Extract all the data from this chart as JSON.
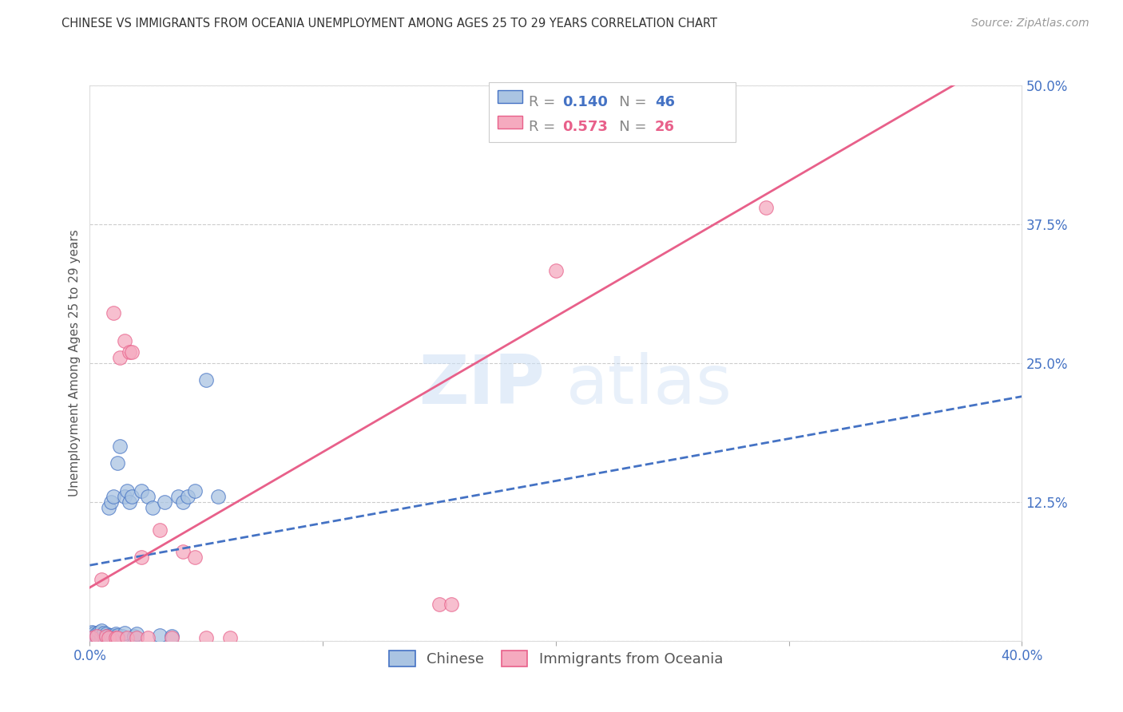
{
  "title": "CHINESE VS IMMIGRANTS FROM OCEANIA UNEMPLOYMENT AMONG AGES 25 TO 29 YEARS CORRELATION CHART",
  "source": "Source: ZipAtlas.com",
  "ylabel": "Unemployment Among Ages 25 to 29 years",
  "xlim": [
    0.0,
    0.4
  ],
  "ylim": [
    0.0,
    0.5
  ],
  "xticks": [
    0.0,
    0.1,
    0.2,
    0.3,
    0.4
  ],
  "xticklabels": [
    "0.0%",
    "",
    "",
    "",
    "40.0%"
  ],
  "yticks": [
    0.0,
    0.125,
    0.25,
    0.375,
    0.5
  ],
  "yticklabels": [
    "",
    "12.5%",
    "25.0%",
    "37.5%",
    "50.0%"
  ],
  "chinese_R": 0.14,
  "chinese_N": 46,
  "oceania_R": 0.573,
  "oceania_N": 26,
  "chinese_color": "#aac4e2",
  "oceania_color": "#f5aabf",
  "chinese_line_color": "#4472c4",
  "oceania_line_color": "#e8608a",
  "chinese_x": [
    0.001,
    0.001,
    0.002,
    0.002,
    0.003,
    0.003,
    0.004,
    0.004,
    0.005,
    0.005,
    0.005,
    0.006,
    0.006,
    0.007,
    0.007,
    0.008,
    0.008,
    0.009,
    0.009,
    0.01,
    0.01,
    0.011,
    0.011,
    0.012,
    0.012,
    0.013,
    0.014,
    0.015,
    0.015,
    0.016,
    0.017,
    0.018,
    0.019,
    0.02,
    0.022,
    0.025,
    0.027,
    0.03,
    0.032,
    0.035,
    0.038,
    0.04,
    0.042,
    0.045,
    0.05,
    0.055
  ],
  "chinese_y": [
    0.005,
    0.008,
    0.004,
    0.007,
    0.003,
    0.006,
    0.004,
    0.008,
    0.002,
    0.005,
    0.009,
    0.003,
    0.007,
    0.004,
    0.006,
    0.005,
    0.12,
    0.005,
    0.125,
    0.004,
    0.13,
    0.005,
    0.006,
    0.005,
    0.16,
    0.175,
    0.004,
    0.007,
    0.13,
    0.135,
    0.125,
    0.13,
    0.004,
    0.006,
    0.135,
    0.13,
    0.12,
    0.005,
    0.125,
    0.004,
    0.13,
    0.125,
    0.13,
    0.135,
    0.235,
    0.13
  ],
  "oceania_x": [
    0.001,
    0.003,
    0.005,
    0.007,
    0.008,
    0.01,
    0.011,
    0.012,
    0.013,
    0.015,
    0.016,
    0.017,
    0.018,
    0.02,
    0.022,
    0.025,
    0.03,
    0.035,
    0.04,
    0.045,
    0.05,
    0.06,
    0.15,
    0.155,
    0.2,
    0.29
  ],
  "oceania_y": [
    0.003,
    0.004,
    0.055,
    0.004,
    0.003,
    0.295,
    0.003,
    0.003,
    0.255,
    0.27,
    0.003,
    0.26,
    0.26,
    0.003,
    0.075,
    0.003,
    0.1,
    0.003,
    0.08,
    0.075,
    0.003,
    0.003,
    0.033,
    0.033,
    0.333,
    0.39
  ],
  "chinese_slope": 0.38,
  "chinese_intercept": 0.068,
  "oceania_slope": 1.22,
  "oceania_intercept": 0.048
}
